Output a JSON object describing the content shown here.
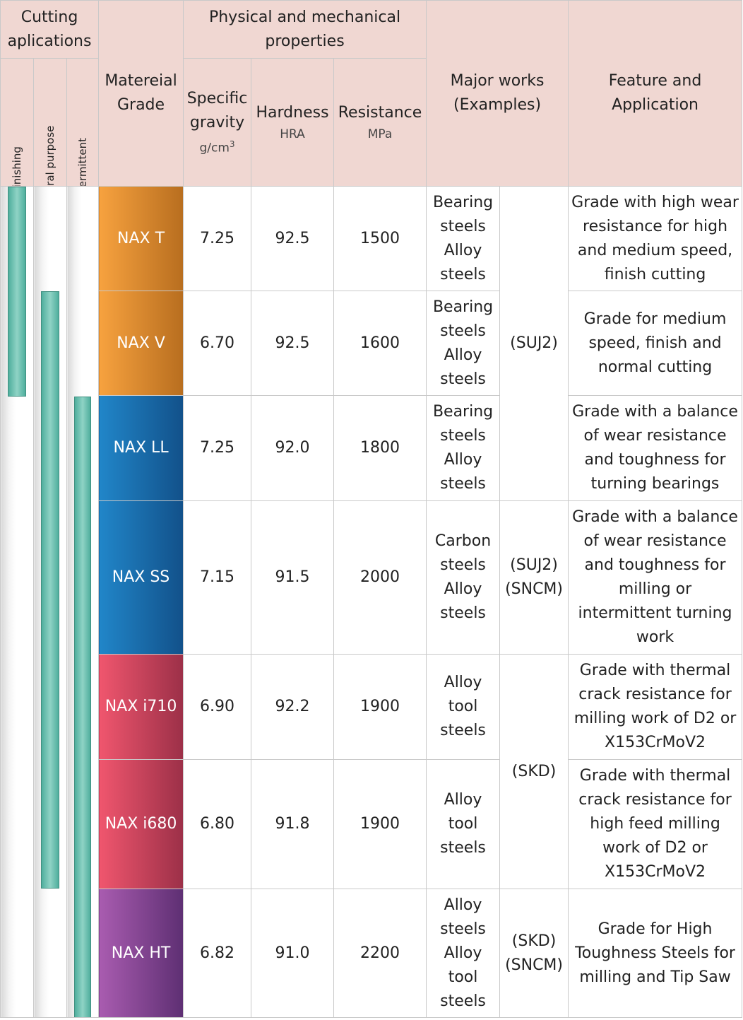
{
  "header": {
    "cutting": "Cutting aplications",
    "finishing": "Finishing",
    "general": "General purpose",
    "intermittent": "Intermittent",
    "grade": "Matereial Grade",
    "physical": "Physical and mechanical properties",
    "gravity": "Specific gravity",
    "gravity_unit": "g/cm",
    "gravity_unit_exp": "3",
    "hardness": "Hardness",
    "hardness_unit": "HRA",
    "resistance": "Resistance",
    "resistance_unit": "MPa",
    "works": "Major works (Examples)",
    "feature": "Feature and Application"
  },
  "colors": {
    "header_bg": "#f0d7d2",
    "bar": "#5fb8a8"
  },
  "rows": [
    {
      "grade": "NAX T",
      "gravity": "7.25",
      "hardness": "92.5",
      "resistance": "1500",
      "works": "Bearing steels Alloy steels",
      "feature": "Grade with high wear resistance for high and medium speed, finish cutting"
    },
    {
      "grade": "NAX V",
      "gravity": "6.70",
      "hardness": "92.5",
      "resistance": "1600",
      "works": "Bearing steels Alloy steels",
      "feature": "Grade for medium speed, finish and normal cutting"
    },
    {
      "grade": "NAX LL",
      "gravity": "7.25",
      "hardness": "92.0",
      "resistance": "1800",
      "works": "Bearing steels Alloy steels",
      "feature": "Grade with a balance of wear resistance and toughness for turning bearings"
    },
    {
      "grade": "NAX SS",
      "gravity": "7.15",
      "hardness": "91.5",
      "resistance": "2000",
      "works": "Carbon steels Alloy steels",
      "feature": "Grade with a balance of wear resistance and toughness for milling or intermittent turning work"
    },
    {
      "grade": "NAX i710",
      "gravity": "6.90",
      "hardness": "92.2",
      "resistance": "1900",
      "works": "Alloy tool steels",
      "feature": "Grade with thermal crack resistance for milling work of D2 or X153CrMoV2"
    },
    {
      "grade": "NAX i680",
      "gravity": "6.80",
      "hardness": "91.8",
      "resistance": "1900",
      "works": "Alloy tool steels",
      "feature": "Grade with thermal crack resistance for high feed milling work of D2 or X153CrMoV2"
    },
    {
      "grade": "NAX HT",
      "gravity": "6.82",
      "hardness": "91.0",
      "resistance": "2200",
      "works": "Alloy steels Alloy tool steels",
      "feature": "Grade for High Toughness Steels for milling and Tip Saw"
    }
  ],
  "material_codes": {
    "suj2": "(SUJ2)",
    "suj2_sncm_a": "(SUJ2)",
    "suj2_sncm_b": "(SNCM)",
    "skd": "(SKD)",
    "skd_sncm_a": "(SKD)",
    "skd_sncm_b": "(SNCM)"
  },
  "applications": {
    "finishing": {
      "from_row": 1,
      "to_row": 2
    },
    "general_purpose": {
      "from_row": 2,
      "to_row": 6
    },
    "intermittent": {
      "from_row": 3,
      "to_row": 7
    }
  }
}
